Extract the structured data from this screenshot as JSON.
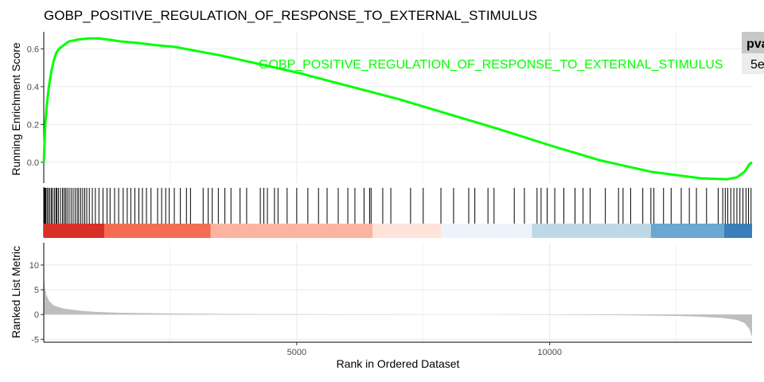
{
  "chart_data": {
    "type": "line",
    "title": "GOBP_POSITIVE_REGULATION_OF_RESPONSE_TO_EXTERNAL_STIMULUS",
    "xlabel": "Rank in Ordered Dataset",
    "xlim": [
      0,
      14000
    ],
    "x_ticks": [
      {
        "value": 5000,
        "label": "5000"
      },
      {
        "value": 10000,
        "label": "10000"
      }
    ],
    "series_label": "GOBP_POSITIVE_REGULATION_OF_RESPONSE_TO_EXTERNAL_STIMULUS",
    "series_color": "#00ff00",
    "grid": true,
    "enrichment": {
      "ylabel": "Running Enrichment Score",
      "ylim": [
        -0.11,
        0.69
      ],
      "y_ticks": [
        {
          "value": 0.0,
          "label": "0.0"
        },
        {
          "value": 0.2,
          "label": "0.2"
        },
        {
          "value": 0.4,
          "label": "0.4"
        },
        {
          "value": 0.6,
          "label": "0.6"
        }
      ],
      "x": [
        0,
        30,
        60,
        100,
        150,
        200,
        250,
        300,
        400,
        500,
        700,
        900,
        1100,
        1300,
        1500,
        1700,
        1900,
        2200,
        2600,
        3000,
        3500,
        4000,
        4500,
        5000,
        6000,
        7000,
        8000,
        9000,
        10000,
        11000,
        12000,
        13000,
        13500,
        13700,
        13850,
        13950,
        14000
      ],
      "y": [
        0.0,
        0.2,
        0.3,
        0.4,
        0.48,
        0.54,
        0.58,
        0.6,
        0.62,
        0.64,
        0.65,
        0.655,
        0.655,
        0.648,
        0.64,
        0.635,
        0.63,
        0.62,
        0.61,
        0.59,
        0.565,
        0.535,
        0.505,
        0.475,
        0.405,
        0.335,
        0.255,
        0.175,
        0.09,
        0.01,
        -0.05,
        -0.085,
        -0.09,
        -0.08,
        -0.05,
        -0.01,
        0.0
      ]
    },
    "hits": [
      8,
      25,
      40,
      65,
      90,
      120,
      150,
      175,
      210,
      240,
      260,
      290,
      330,
      370,
      400,
      430,
      460,
      500,
      540,
      580,
      620,
      660,
      690,
      730,
      770,
      810,
      850,
      900,
      960,
      1020,
      1090,
      1170,
      1250,
      1310,
      1400,
      1480,
      1570,
      1650,
      1720,
      1800,
      1880,
      1950,
      2030,
      2120,
      2250,
      2330,
      2410,
      2480,
      2580,
      2700,
      2820,
      2900,
      3150,
      3250,
      3330,
      3450,
      3580,
      3700,
      3880,
      4010,
      4280,
      4350,
      4420,
      4560,
      4630,
      4810,
      5000,
      5220,
      5430,
      5600,
      5820,
      6010,
      6150,
      6330,
      6440,
      6470,
      6700,
      6860,
      7250,
      7500,
      7850,
      8100,
      8400,
      8520,
      8780,
      8900,
      9300,
      9500,
      9750,
      9830,
      9950,
      10100,
      10280,
      10500,
      10660,
      10800,
      11100,
      11360,
      11450,
      11600,
      11840,
      12000,
      12060,
      12250,
      12400,
      12600,
      12760,
      12900,
      13100,
      13330,
      13420,
      13470,
      13520,
      13580,
      13640,
      13700,
      13760,
      13820,
      13880,
      13930,
      13980
    ],
    "ranked_metric": {
      "ylabel": "Ranked List Metric",
      "ylim": [
        -5.6,
        14.5
      ],
      "y_ticks": [
        {
          "value": -5,
          "label": "-5"
        },
        {
          "value": 0,
          "label": "0"
        },
        {
          "value": 5,
          "label": "5"
        },
        {
          "value": 10,
          "label": "10"
        }
      ],
      "x": [
        0,
        20,
        50,
        100,
        200,
        400,
        700,
        1000,
        1500,
        2500,
        4000,
        6000,
        8000,
        10000,
        11500,
        12500,
        13000,
        13400,
        13700,
        13850,
        13950,
        14000
      ],
      "y": [
        8.0,
        5.5,
        4.0,
        2.8,
        1.8,
        1.2,
        0.8,
        0.55,
        0.35,
        0.2,
        0.1,
        0.03,
        0.0,
        -0.05,
        -0.15,
        -0.3,
        -0.45,
        -0.7,
        -1.1,
        -1.7,
        -3.0,
        -4.5
      ]
    },
    "color_bar": [
      {
        "from": 0,
        "to": 1200,
        "color": "#d73027"
      },
      {
        "from": 1200,
        "to": 3300,
        "color": "#f46d53"
      },
      {
        "from": 3300,
        "to": 6500,
        "color": "#fbb4a0"
      },
      {
        "from": 6500,
        "to": 7850,
        "color": "#fde3da"
      },
      {
        "from": 7850,
        "to": 9650,
        "color": "#eef3fb"
      },
      {
        "from": 9650,
        "to": 12000,
        "color": "#bfd8e6"
      },
      {
        "from": 12000,
        "to": 13450,
        "color": "#6aa7d2"
      },
      {
        "from": 13450,
        "to": 14000,
        "color": "#3a7fba"
      }
    ],
    "table": {
      "header": "pva",
      "value": "5e"
    }
  }
}
